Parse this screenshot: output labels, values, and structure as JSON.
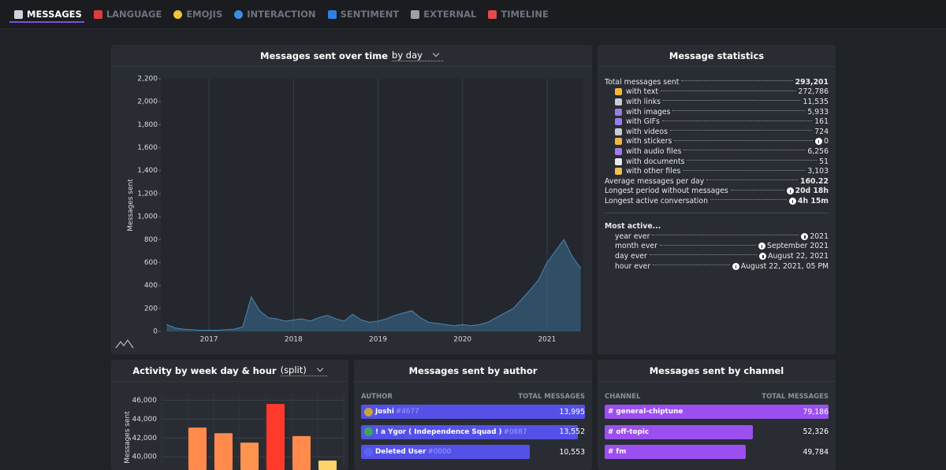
{
  "nav": {
    "tabs": [
      "MESSAGES",
      "LANGUAGE",
      "EMOJIS",
      "INTERACTION",
      "SENTIMENT",
      "EXTERNAL",
      "TIMELINE"
    ]
  },
  "time_chart": {
    "title": "Messages sent over time",
    "period": "by day",
    "chart_data": {
      "type": "area",
      "y_label": "Messages sent",
      "color": "#3b6e94",
      "x": [
        2016.5,
        2016.6,
        2016.7,
        2016.8,
        2016.9,
        2017.0,
        2017.1,
        2017.2,
        2017.3,
        2017.4,
        2017.5,
        2017.6,
        2017.7,
        2017.8,
        2017.9,
        2018.0,
        2018.1,
        2018.2,
        2018.3,
        2018.4,
        2018.5,
        2018.6,
        2018.7,
        2018.8,
        2018.9,
        2019.0,
        2019.1,
        2019.2,
        2019.3,
        2019.4,
        2019.5,
        2019.6,
        2019.7,
        2019.8,
        2019.9,
        2020.0,
        2020.1,
        2020.2,
        2020.3,
        2020.4,
        2020.5,
        2020.6,
        2020.7,
        2020.8,
        2020.9,
        2021.0,
        2021.1,
        2021.2,
        2021.3,
        2021.4
      ],
      "values": [
        60,
        30,
        20,
        15,
        10,
        10,
        10,
        15,
        20,
        40,
        300,
        180,
        120,
        110,
        90,
        100,
        110,
        90,
        120,
        140,
        110,
        90,
        150,
        100,
        80,
        90,
        110,
        140,
        160,
        180,
        120,
        80,
        70,
        60,
        50,
        60,
        50,
        60,
        80,
        120,
        160,
        200,
        280,
        360,
        450,
        600,
        700,
        800,
        650,
        550
      ],
      "xlim": [
        2016.43,
        2021.43
      ],
      "xticks": [
        2017,
        2018,
        2019,
        2020,
        2021
      ],
      "ylim": [
        0,
        2200
      ],
      "yticks": [
        0,
        200,
        400,
        600,
        800,
        {
          "value": 1000,
          "label": "1,000"
        },
        {
          "value": 1200,
          "label": "1,200"
        },
        {
          "value": 1400,
          "label": "1,400"
        },
        {
          "value": 1600,
          "label": "1,600"
        },
        {
          "value": 1800,
          "label": "1,800"
        },
        {
          "value": 2000,
          "label": "2,000"
        },
        {
          "value": 2200,
          "label": "2,200"
        }
      ]
    }
  },
  "statistics": {
    "title": "Message statistics",
    "total": {
      "label": "Total messages sent",
      "value": "293,201"
    },
    "breakdown": [
      {
        "label": "with text",
        "value": "272,786"
      },
      {
        "label": "with links",
        "value": "11,535"
      },
      {
        "label": "with images",
        "value": "5,933"
      },
      {
        "label": "with GIFs",
        "value": "161"
      },
      {
        "label": "with videos",
        "value": "724"
      },
      {
        "label": "with stickers",
        "value": "0"
      },
      {
        "label": "with audio files",
        "value": "6,256"
      },
      {
        "label": "with documents",
        "value": "51"
      },
      {
        "label": "with other files",
        "value": "3,103"
      }
    ],
    "others": [
      {
        "label": "Average messages per day",
        "value": "160.22"
      },
      {
        "label": "Longest period without messages",
        "value": "20d 18h"
      },
      {
        "label": "Longest active conversation",
        "value": "4h 15m"
      }
    ],
    "most_active": {
      "title": "Most active...",
      "rows": [
        {
          "label": "year ever",
          "value": "2021"
        },
        {
          "label": "month ever",
          "value": "September 2021"
        },
        {
          "label": "day ever",
          "value": "August 22, 2021"
        },
        {
          "label": "hour ever",
          "value": "August 22, 2021, 05 PM"
        }
      ]
    }
  },
  "activity": {
    "title": "Activity by week day & hour",
    "mode": "(split)",
    "chart_data": {
      "type": "bar",
      "y_label": "Messages sent",
      "categories": [
        null,
        null,
        null,
        null,
        null,
        null
      ],
      "values": [
        43100,
        42500,
        41500,
        45600,
        42200,
        39600
      ],
      "colors": [
        "#ff8a4c",
        "#ff8a4c",
        "#ff9450",
        "#ff3a2a",
        "#ff8a4c",
        "#ffd36a"
      ],
      "ylim": [
        39100,
        46700
      ],
      "yticks": [
        {
          "value": 40000,
          "label": "40,000"
        },
        {
          "value": 42000,
          "label": "42,000"
        },
        {
          "value": 44000,
          "label": "44,000"
        },
        {
          "value": 46000,
          "label": "46,000"
        }
      ]
    }
  },
  "authors": {
    "title": "Messages sent by author",
    "columns": [
      "AUTHOR",
      "TOTAL MESSAGES"
    ],
    "names": [
      "Joshi",
      "! a Ygor ( Independence Squad )",
      "Deleted User"
    ],
    "tags": [
      "#4677",
      "#0887",
      "#0000"
    ],
    "values": [
      13995,
      13552,
      10553
    ],
    "value_labels": [
      "13,995",
      "13,552",
      "10,553"
    ],
    "color": "#5551e8"
  },
  "channels": {
    "title": "Messages sent by channel",
    "columns": [
      "CHANNEL",
      "TOTAL MESSAGES"
    ],
    "names": [
      "# general-chiptune",
      "# off-topic",
      "# fm"
    ],
    "values": [
      79186,
      52326,
      49784
    ],
    "value_labels": [
      "79,186",
      "52,326",
      "49,784"
    ],
    "color": "#9b4ff0"
  }
}
